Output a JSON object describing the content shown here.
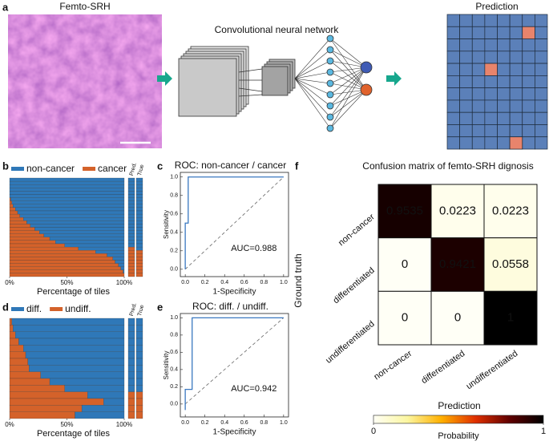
{
  "panel_a": {
    "letter": "a",
    "image_title": "Femto-SRH",
    "network_title": "Convolutional neural network",
    "prediction_title": "Prediction",
    "grid": {
      "rows": 11,
      "cols": 8,
      "highlight": [
        [
          1,
          6
        ],
        [
          4,
          3
        ],
        [
          10,
          5
        ]
      ]
    }
  },
  "chart_data": [
    {
      "panel": "b",
      "type": "bar",
      "orientation": "horizontal",
      "stacked": true,
      "series": [
        {
          "name": "non-cancer",
          "color": "#2f78b8",
          "values": [
            100,
            100,
            100,
            100,
            100,
            100,
            99,
            98,
            97,
            95,
            93,
            91,
            88,
            85,
            82,
            78,
            74,
            70,
            65,
            60,
            52,
            40,
            25,
            15,
            10,
            8,
            5,
            3,
            1,
            0
          ]
        },
        {
          "name": "cancer",
          "color": "#d4622a",
          "values": [
            0,
            0,
            0,
            0,
            0,
            0,
            1,
            2,
            3,
            5,
            7,
            9,
            12,
            15,
            18,
            22,
            26,
            30,
            35,
            40,
            48,
            60,
            75,
            85,
            90,
            92,
            95,
            97,
            99,
            100
          ]
        }
      ],
      "side_columns": [
        {
          "name": "Pred.",
          "values": [
            0,
            0,
            0,
            0,
            0,
            0,
            0,
            0,
            0,
            0,
            0,
            0,
            0,
            0,
            0,
            0,
            0,
            0,
            0,
            0,
            0,
            1,
            1,
            1,
            1,
            1,
            1,
            1,
            1,
            1
          ]
        },
        {
          "name": "True",
          "values": [
            0,
            0,
            0,
            0,
            0,
            0,
            0,
            0,
            0,
            0,
            0,
            0,
            0,
            0,
            0,
            0,
            0,
            0,
            0,
            0,
            0,
            0,
            1,
            1,
            1,
            1,
            1,
            1,
            1,
            1
          ]
        }
      ],
      "xlim": [
        0,
        100
      ],
      "xticks": [
        {
          "value": 0,
          "label": "0%"
        },
        {
          "value": 50,
          "label": "50%"
        },
        {
          "value": 100,
          "label": "100%"
        }
      ],
      "xlabel": "Percentage of tiles"
    },
    {
      "panel": "c",
      "type": "line",
      "title": "ROC: non-cancer / cancer",
      "color": "#3a78c0",
      "x": [
        0,
        0,
        0.03,
        0.03,
        1
      ],
      "values": [
        0,
        0.5,
        0.5,
        1,
        1
      ],
      "xlim": [
        -0.05,
        1.05
      ],
      "ylim": [
        -0.08,
        1.05
      ],
      "xticks": [
        {
          "value": 0,
          "label": "0.0"
        },
        {
          "value": 0.2,
          "label": "0.2"
        },
        {
          "value": 0.4,
          "label": "0.4"
        },
        {
          "value": 0.6,
          "label": "0.6"
        },
        {
          "value": 0.8,
          "label": "0.8"
        },
        {
          "value": 1,
          "label": "1.0"
        }
      ],
      "yticks": [
        {
          "value": 0,
          "label": "0.0"
        },
        {
          "value": 0.2,
          "label": "0.2"
        },
        {
          "value": 0.4,
          "label": "0.4"
        },
        {
          "value": 0.6,
          "label": "0.6"
        },
        {
          "value": 0.8,
          "label": "0.8"
        },
        {
          "value": 1,
          "label": "1.0"
        }
      ],
      "xlabel": "1-Specificity",
      "ylabel": "Sensitivity",
      "annotation": "AUC=0.988",
      "diagonal": true
    },
    {
      "panel": "d",
      "type": "bar",
      "orientation": "horizontal",
      "stacked": true,
      "series": [
        {
          "name": "diff.",
          "color": "#2f78b8",
          "values": [
            98,
            97,
            95,
            92,
            88,
            86,
            84,
            83,
            73,
            65,
            52,
            32,
            18,
            37,
            43
          ]
        },
        {
          "name": "undiff.",
          "color": "#d4622a",
          "values": [
            2,
            3,
            5,
            8,
            12,
            14,
            16,
            17,
            27,
            35,
            48,
            68,
            82,
            63,
            57
          ]
        }
      ],
      "side_columns": [
        {
          "name": "Pred.",
          "values": [
            0,
            0,
            0,
            0,
            0,
            0,
            0,
            0,
            0,
            0,
            0,
            1,
            1,
            1,
            1
          ]
        },
        {
          "name": "True",
          "values": [
            0,
            0,
            0,
            0,
            0,
            0,
            0,
            0,
            0,
            0,
            0,
            1,
            1,
            1,
            1
          ]
        }
      ],
      "xlim": [
        0,
        100
      ],
      "xticks": [
        {
          "value": 0,
          "label": "0%"
        },
        {
          "value": 50,
          "label": "50%"
        },
        {
          "value": 100,
          "label": "100%"
        }
      ],
      "xlabel": "Percentage of tiles"
    },
    {
      "panel": "e",
      "type": "line",
      "title": "ROC: diff. / undiff.",
      "color": "#3a78c0",
      "x": [
        0,
        0,
        0.07,
        0.07,
        1
      ],
      "values": [
        -0.07,
        0.17,
        0.17,
        1,
        1
      ],
      "xlim": [
        -0.05,
        1.05
      ],
      "ylim": [
        -0.15,
        1.05
      ],
      "xticks": [
        {
          "value": 0,
          "label": "0.0"
        },
        {
          "value": 0.2,
          "label": "0.2"
        },
        {
          "value": 0.4,
          "label": "0.4"
        },
        {
          "value": 0.6,
          "label": "0.6"
        },
        {
          "value": 0.8,
          "label": "0.8"
        },
        {
          "value": 1,
          "label": "1.0"
        }
      ],
      "yticks": [
        {
          "value": 0,
          "label": "0.0"
        },
        {
          "value": 0.2,
          "label": "0.2"
        },
        {
          "value": 0.4,
          "label": "0.4"
        },
        {
          "value": 0.6,
          "label": "0.6"
        },
        {
          "value": 0.8,
          "label": "0.8"
        },
        {
          "value": 1,
          "label": "1.0"
        }
      ],
      "xlabel": "1-Specificity",
      "ylabel": "Sensitivity",
      "annotation": "AUC=0.942",
      "diagonal": true
    },
    {
      "panel": "f",
      "type": "heatmap",
      "title": "Confusion matrix of femto-SRH dignosis",
      "x_categories": [
        "non-cancer",
        "differentiated",
        "undifferentiated"
      ],
      "y_categories": [
        "non-cancer",
        "differentiated",
        "undifferentiated"
      ],
      "values": [
        [
          0.9535,
          0.0223,
          0.0223
        ],
        [
          0,
          0.9421,
          0.0558
        ],
        [
          0,
          0,
          1
        ]
      ],
      "xlabel": "Prediction",
      "ylabel": "Ground truth",
      "clim": [
        0,
        1
      ],
      "colormap": [
        "#fffff6",
        "#fbf6a0",
        "#ffb000",
        "#e03000",
        "#600000",
        "#000000"
      ],
      "colorbar": {
        "label": "Probability",
        "ticks": [
          0,
          1
        ]
      }
    }
  ]
}
